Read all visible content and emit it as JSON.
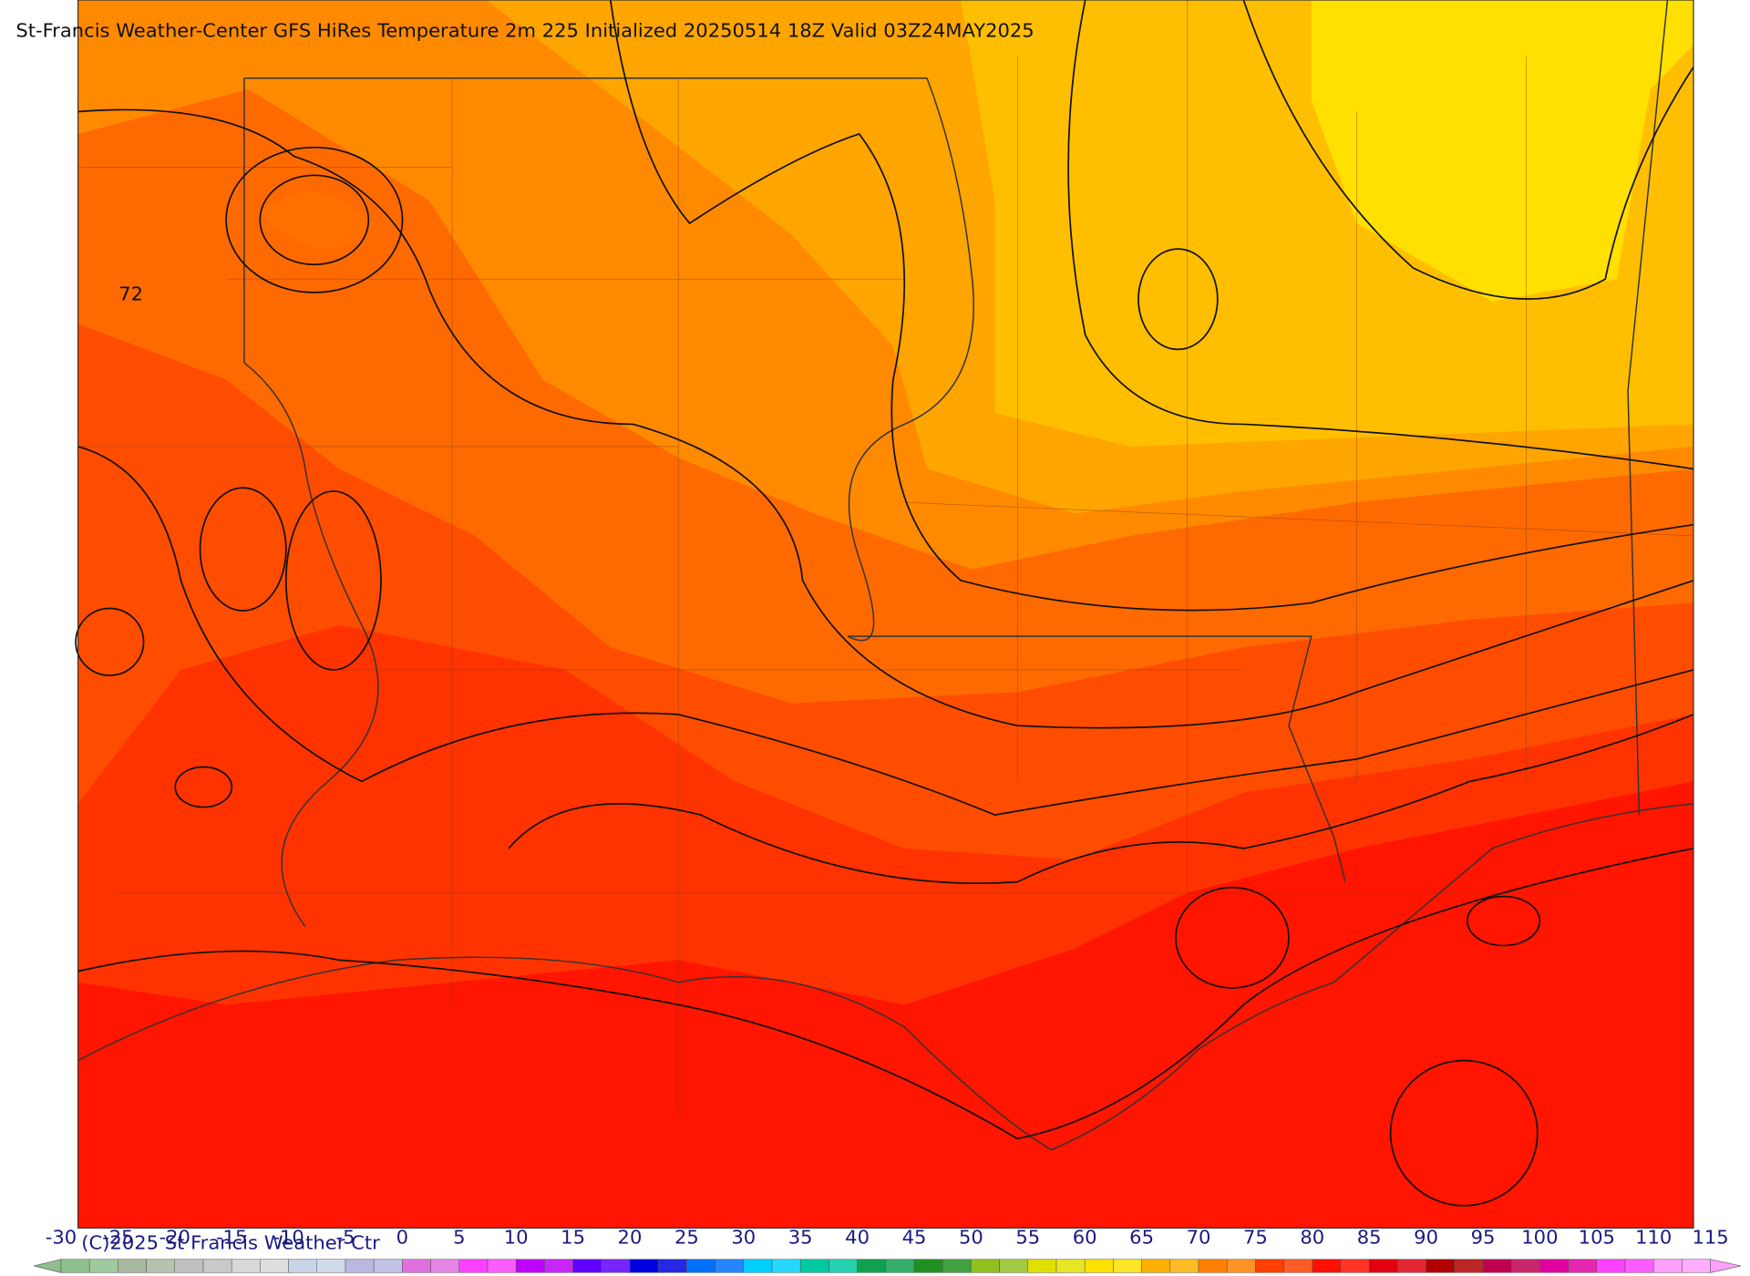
{
  "header": {
    "title": "St-Francis Weather-Center GFS HiRes Temperature 2m  225 Initialized 20250514 18Z Valid 03Z24MAY2025"
  },
  "map": {
    "contour_label": "72",
    "copyright": "(C)2025 St Francis Weather Ctr"
  },
  "colorbar": {
    "ticks": [
      -30,
      -25,
      -20,
      -15,
      -10,
      -5,
      0,
      5,
      10,
      15,
      20,
      25,
      30,
      35,
      40,
      45,
      50,
      55,
      60,
      65,
      70,
      75,
      80,
      85,
      90,
      95,
      100,
      105,
      110,
      115
    ],
    "colors": [
      "#8fbf8f",
      "#a8b8a0",
      "#c0c0c0",
      "#d8d8d8",
      "#c8d4e8",
      "#b8b8e0",
      "#e070e0",
      "#ff40ff",
      "#c000ff",
      "#6000ff",
      "#0000e0",
      "#0070ff",
      "#00d0ff",
      "#00c8a0",
      "#10a050",
      "#209020",
      "#90c020",
      "#e0e000",
      "#ffe000",
      "#ffb000",
      "#ff8000",
      "#ff4000",
      "#ff1000",
      "#e00010",
      "#b00000",
      "#c00050",
      "#e000a0",
      "#ff40ff",
      "#ffa0ff"
    ]
  }
}
